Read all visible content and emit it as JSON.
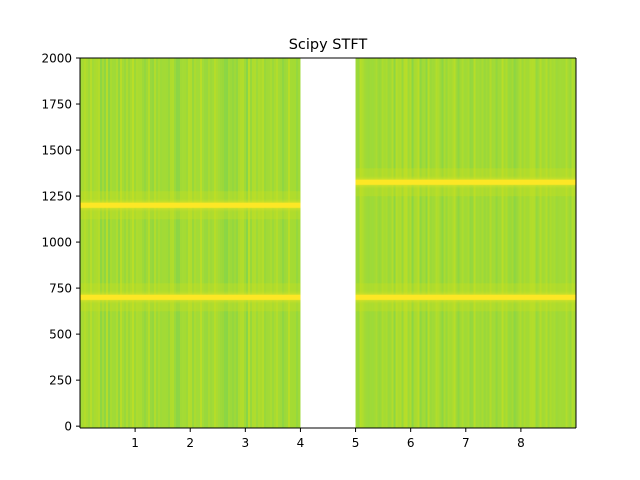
{
  "chart_data": {
    "type": "heatmap",
    "title": "Scipy STFT",
    "xlabel": "",
    "ylabel": "",
    "xlim": [
      0,
      9
    ],
    "ylim": [
      -10,
      2000
    ],
    "x_ticks": [
      1,
      2,
      3,
      4,
      5,
      6,
      7,
      8
    ],
    "y_ticks": [
      0,
      250,
      500,
      750,
      1000,
      1250,
      1500,
      1750,
      2000
    ],
    "colormap": "viridis",
    "background_color": "#a6db32",
    "band_color": "#fde725",
    "gap_color": "#ffffff",
    "segments": [
      {
        "t_start": 0,
        "t_end": 4,
        "peak_frequencies": [
          700,
          1200
        ]
      },
      {
        "t_start": 5,
        "t_end": 9,
        "peak_frequencies": [
          700,
          1325
        ]
      }
    ],
    "gap": {
      "t_start": 4,
      "t_end": 5
    }
  }
}
